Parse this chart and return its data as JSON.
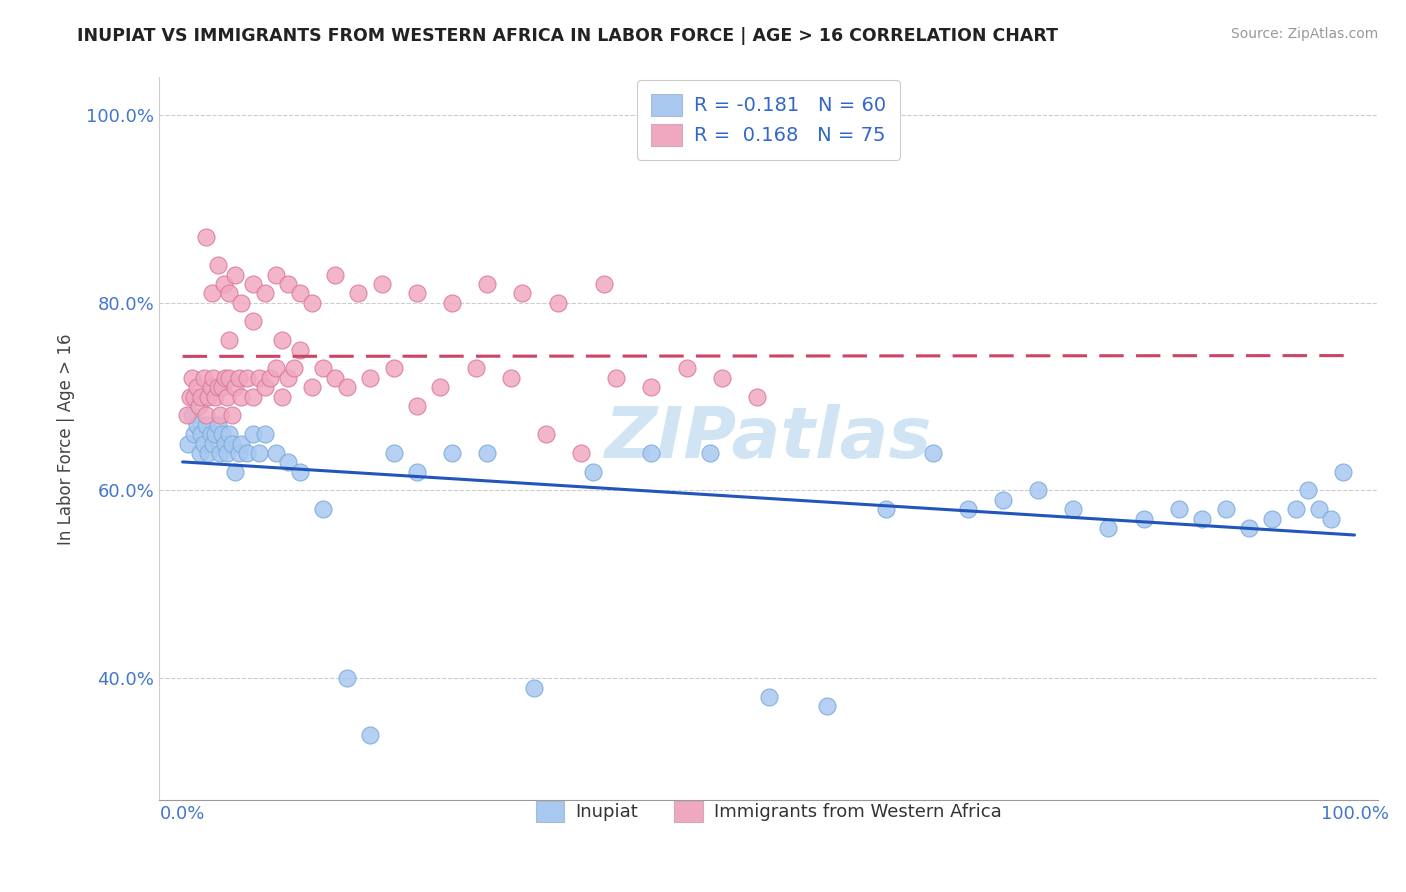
{
  "title": "INUPIAT VS IMMIGRANTS FROM WESTERN AFRICA IN LABOR FORCE | AGE > 16 CORRELATION CHART",
  "source": "Source: ZipAtlas.com",
  "xlabel": "",
  "ylabel": "In Labor Force | Age > 16",
  "xlim": [
    -0.02,
    1.02
  ],
  "ylim": [
    0.27,
    1.04
  ],
  "yticks": [
    0.4,
    0.6,
    0.8,
    1.0
  ],
  "ytick_labels": [
    "40.0%",
    "60.0%",
    "80.0%",
    "100.0%"
  ],
  "xticks": [
    0.0,
    1.0
  ],
  "xtick_labels": [
    "0.0%",
    "100.0%"
  ],
  "legend_entries": [
    {
      "label": "R = -0.181   N = 60",
      "color": "#a8c8f0"
    },
    {
      "label": "R =  0.168   N = 75",
      "color": "#f0a8c0"
    }
  ],
  "series1_name": "Inupiat",
  "series1_color": "#a8c8f0",
  "series1_edge": "#7aaad8",
  "series2_name": "Immigrants from Western Africa",
  "series2_color": "#f0a8c0",
  "series2_edge": "#d87898",
  "trend1_color": "#2255bb",
  "trend2_color": "#cc4466",
  "background_color": "#ffffff",
  "grid_color": "#cccccc",
  "watermark": "ZIPatlas",
  "watermark_color": "#d0e4f4",
  "inupiat_x": [
    0.005,
    0.008,
    0.01,
    0.012,
    0.015,
    0.016,
    0.018,
    0.02,
    0.022,
    0.024,
    0.026,
    0.028,
    0.03,
    0.032,
    0.034,
    0.036,
    0.038,
    0.04,
    0.042,
    0.045,
    0.048,
    0.05,
    0.055,
    0.06,
    0.065,
    0.07,
    0.08,
    0.09,
    0.1,
    0.12,
    0.14,
    0.16,
    0.18,
    0.2,
    0.23,
    0.26,
    0.3,
    0.35,
    0.4,
    0.45,
    0.5,
    0.55,
    0.6,
    0.64,
    0.67,
    0.7,
    0.73,
    0.76,
    0.79,
    0.82,
    0.85,
    0.87,
    0.89,
    0.91,
    0.93,
    0.95,
    0.96,
    0.97,
    0.98,
    0.99
  ],
  "inupiat_y": [
    0.65,
    0.68,
    0.66,
    0.67,
    0.64,
    0.66,
    0.65,
    0.67,
    0.64,
    0.66,
    0.65,
    0.66,
    0.67,
    0.64,
    0.66,
    0.65,
    0.64,
    0.66,
    0.65,
    0.62,
    0.64,
    0.65,
    0.64,
    0.66,
    0.64,
    0.66,
    0.64,
    0.63,
    0.62,
    0.58,
    0.4,
    0.34,
    0.64,
    0.62,
    0.64,
    0.64,
    0.39,
    0.62,
    0.64,
    0.64,
    0.38,
    0.37,
    0.58,
    0.64,
    0.58,
    0.59,
    0.6,
    0.58,
    0.56,
    0.57,
    0.58,
    0.57,
    0.58,
    0.56,
    0.57,
    0.58,
    0.6,
    0.58,
    0.57,
    0.62
  ],
  "western_africa_x": [
    0.004,
    0.006,
    0.008,
    0.01,
    0.012,
    0.014,
    0.016,
    0.018,
    0.02,
    0.022,
    0.024,
    0.026,
    0.028,
    0.03,
    0.032,
    0.034,
    0.036,
    0.038,
    0.04,
    0.042,
    0.045,
    0.048,
    0.05,
    0.055,
    0.06,
    0.065,
    0.07,
    0.075,
    0.08,
    0.085,
    0.09,
    0.095,
    0.1,
    0.11,
    0.12,
    0.13,
    0.14,
    0.16,
    0.18,
    0.2,
    0.22,
    0.25,
    0.28,
    0.31,
    0.34,
    0.37,
    0.4,
    0.43,
    0.46,
    0.49,
    0.02,
    0.025,
    0.03,
    0.035,
    0.04,
    0.045,
    0.05,
    0.06,
    0.07,
    0.08,
    0.09,
    0.1,
    0.11,
    0.13,
    0.15,
    0.17,
    0.2,
    0.23,
    0.26,
    0.29,
    0.32,
    0.36,
    0.04,
    0.06,
    0.085
  ],
  "western_africa_y": [
    0.68,
    0.7,
    0.72,
    0.7,
    0.71,
    0.69,
    0.7,
    0.72,
    0.68,
    0.7,
    0.71,
    0.72,
    0.7,
    0.71,
    0.68,
    0.71,
    0.72,
    0.7,
    0.72,
    0.68,
    0.71,
    0.72,
    0.7,
    0.72,
    0.7,
    0.72,
    0.71,
    0.72,
    0.73,
    0.7,
    0.72,
    0.73,
    0.75,
    0.71,
    0.73,
    0.72,
    0.71,
    0.72,
    0.73,
    0.69,
    0.71,
    0.73,
    0.72,
    0.66,
    0.64,
    0.72,
    0.71,
    0.73,
    0.72,
    0.7,
    0.87,
    0.81,
    0.84,
    0.82,
    0.81,
    0.83,
    0.8,
    0.82,
    0.81,
    0.83,
    0.82,
    0.81,
    0.8,
    0.83,
    0.81,
    0.82,
    0.81,
    0.8,
    0.82,
    0.81,
    0.8,
    0.82,
    0.76,
    0.78,
    0.76
  ]
}
